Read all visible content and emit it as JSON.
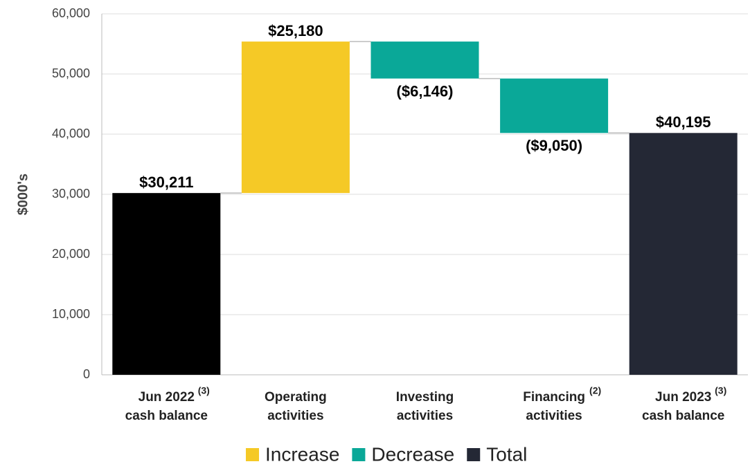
{
  "chart_data": {
    "type": "waterfall",
    "y_label": "$000's",
    "categories": [
      [
        "Jun 2022",
        "cash balance"
      ],
      [
        "Operating",
        "activities"
      ],
      [
        "Investing",
        "activities"
      ],
      [
        "Financing",
        "activities"
      ],
      [
        "Jun 2023",
        "cash balance"
      ]
    ],
    "category_notes": [
      "(3)",
      null,
      null,
      "(2)",
      "(3)"
    ],
    "kinds": [
      "total",
      "increase",
      "decrease",
      "decrease",
      "total"
    ],
    "values": [
      30211,
      25180,
      -6146,
      -9050,
      40195
    ],
    "value_labels": [
      "$30,211",
      "$25,180",
      "($6,146)",
      "($9,050)",
      "$40,195"
    ],
    "bar_colors": [
      "#000000",
      "#f5c926",
      "#0aa898",
      "#0aa898",
      "#242835"
    ],
    "legend": [
      {
        "name": "Increase",
        "color": "#f5c926"
      },
      {
        "name": "Decrease",
        "color": "#0aa898"
      },
      {
        "name": "Total",
        "color": "#242835"
      }
    ],
    "ylim": [
      0,
      60000
    ],
    "yticks": [
      {
        "value": 0,
        "label": "0"
      },
      {
        "value": 10000,
        "label": "10,000"
      },
      {
        "value": 20000,
        "label": "20,000"
      },
      {
        "value": 30000,
        "label": "30,000"
      },
      {
        "value": 40000,
        "label": "40,000"
      },
      {
        "value": 50000,
        "label": "50,000"
      },
      {
        "value": 60000,
        "label": "60,000"
      }
    ],
    "grid": true
  }
}
